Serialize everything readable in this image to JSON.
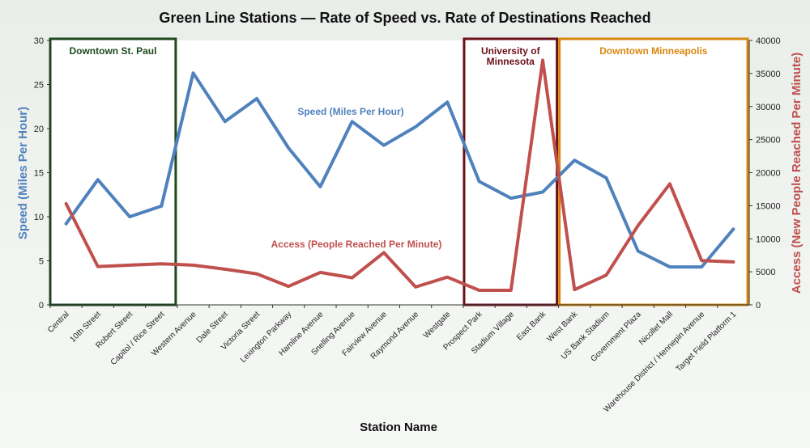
{
  "chart_data": {
    "type": "line",
    "title": "Green Line Stations — Rate of Speed vs. Rate of Destinations Reached",
    "xlabel": "Station Name",
    "ylabel_left": "Speed (Miles Per Hour)",
    "ylabel_right": "Access (New People Reached Per Minute)",
    "ylim_left": [
      0,
      30
    ],
    "yticks_left": [
      0,
      5,
      10,
      15,
      20,
      25,
      30
    ],
    "ylim_right": [
      0,
      40000
    ],
    "yticks_right": [
      0,
      5000,
      10000,
      15000,
      20000,
      25000,
      30000,
      35000,
      40000
    ],
    "categories": [
      "Central",
      "10th Street",
      "Robert Street",
      "Capitol / Rice Street",
      "Western Avenue",
      "Dale Street",
      "Victoria Street",
      "Lexington Parkway",
      "Hamline Avenue",
      "Snelling Avenue",
      "Fairview Avenue",
      "Raymond Avenue",
      "Westgate",
      "Prospect Park",
      "Stadium Village",
      "East Bank",
      "West Bank",
      "US Bank Stadium",
      "Government Plaza",
      "Nicollet Mall",
      "Warehouse District / Hennepin Avenue",
      "Target Field Platform 1"
    ],
    "series": [
      {
        "name": "Speed (Miles Per Hour)",
        "axis": "left",
        "color": "#4f81bd",
        "values": [
          9.2,
          14.2,
          10.0,
          11.2,
          26.3,
          20.8,
          23.4,
          17.8,
          13.4,
          20.8,
          18.1,
          20.2,
          23.0,
          14.0,
          12.1,
          12.8,
          16.4,
          14.4,
          6.1,
          4.3,
          4.3,
          8.6
        ]
      },
      {
        "name": "Access (People Reached Per Minute)",
        "axis": "right",
        "color": "#c0504d",
        "values": [
          15300,
          5800,
          6000,
          6200,
          6000,
          5400,
          4700,
          2800,
          4900,
          4100,
          7900,
          2700,
          4200,
          2200,
          2200,
          37000,
          2300,
          4500,
          12000,
          18300,
          6700,
          6500
        ]
      }
    ],
    "regions": [
      {
        "label": "Downtown St. Paul",
        "from": "Central",
        "to": "Capitol / Rice Street",
        "color": "#1e4a1e"
      },
      {
        "label": "University of Minnesota",
        "from": "Prospect Park",
        "to": "East Bank",
        "color": "#6b1018"
      },
      {
        "label": "Downtown Minneapolis",
        "from": "West Bank",
        "to": "Target Field Platform 1",
        "color": "#d9880f"
      }
    ],
    "grid": false,
    "legend": "none"
  }
}
